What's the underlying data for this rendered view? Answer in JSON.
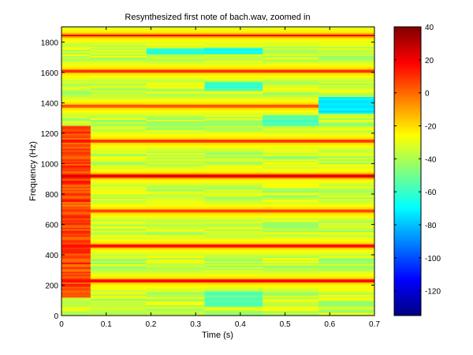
{
  "chart_data": {
    "type": "heatmap",
    "title": "Resynthesized first note of bach.wav, zoomed in",
    "xlabel": "Time (s)",
    "ylabel": "Frequency (Hz)",
    "xlim": [
      0,
      0.7
    ],
    "ylim": [
      0,
      1900
    ],
    "xticks": [
      0,
      0.1,
      0.2,
      0.3,
      0.4,
      0.5,
      0.6,
      0.7
    ],
    "xtick_labels": [
      "0",
      "0.1",
      "0.2",
      "0.3",
      "0.4",
      "0.5",
      "0.6",
      "0.7"
    ],
    "yticks": [
      0,
      200,
      400,
      600,
      800,
      1000,
      1200,
      1400,
      1600,
      1800
    ],
    "ytick_labels": [
      "0",
      "200",
      "400",
      "600",
      "800",
      "1000",
      "1200",
      "1400",
      "1600",
      "1800"
    ],
    "colormap": "jet",
    "color_range": [
      -135,
      40
    ],
    "colorbar_ticks": [
      40,
      20,
      0,
      -20,
      -40,
      -60,
      -80,
      -100,
      -120
    ],
    "colorbar_tick_labels": [
      "40",
      "20",
      "0",
      "-20",
      "-40",
      "-60",
      "-80",
      "-100",
      "-120"
    ],
    "time_frames": [
      {
        "t0": 0.0,
        "t1": 0.065
      },
      {
        "t0": 0.065,
        "t1": 0.19
      },
      {
        "t0": 0.19,
        "t1": 0.32
      },
      {
        "t0": 0.32,
        "t1": 0.45
      },
      {
        "t0": 0.45,
        "t1": 0.575
      },
      {
        "t0": 0.575,
        "t1": 0.7
      }
    ],
    "harmonics_hz": [
      230,
      460,
      690,
      920,
      1150,
      1380,
      1610,
      1845
    ],
    "harmonic_peak_db": [
      32,
      32,
      22,
      38,
      24,
      20,
      25,
      22
    ],
    "first_frame_bands": [
      {
        "f0": 120,
        "f1": 1250,
        "db": 6
      }
    ],
    "quiet_regions": [
      {
        "t0": 0.19,
        "t1": 0.32,
        "f0": 1720,
        "f1": 1760,
        "db": -70
      },
      {
        "t0": 0.32,
        "t1": 0.45,
        "f0": 1720,
        "f1": 1760,
        "db": -75
      },
      {
        "t0": 0.32,
        "t1": 0.45,
        "f0": 1480,
        "f1": 1540,
        "db": -65
      },
      {
        "t0": 0.575,
        "t1": 0.7,
        "f0": 1330,
        "f1": 1440,
        "db": -80
      },
      {
        "t0": 0.32,
        "t1": 0.45,
        "f0": 60,
        "f1": 160,
        "db": -60
      },
      {
        "t0": 0.45,
        "t1": 0.575,
        "f0": 1250,
        "f1": 1320,
        "db": -60
      }
    ],
    "grid": false,
    "legend": "none"
  },
  "colors": {
    "axis": "#000000",
    "background": "#ffffff"
  }
}
